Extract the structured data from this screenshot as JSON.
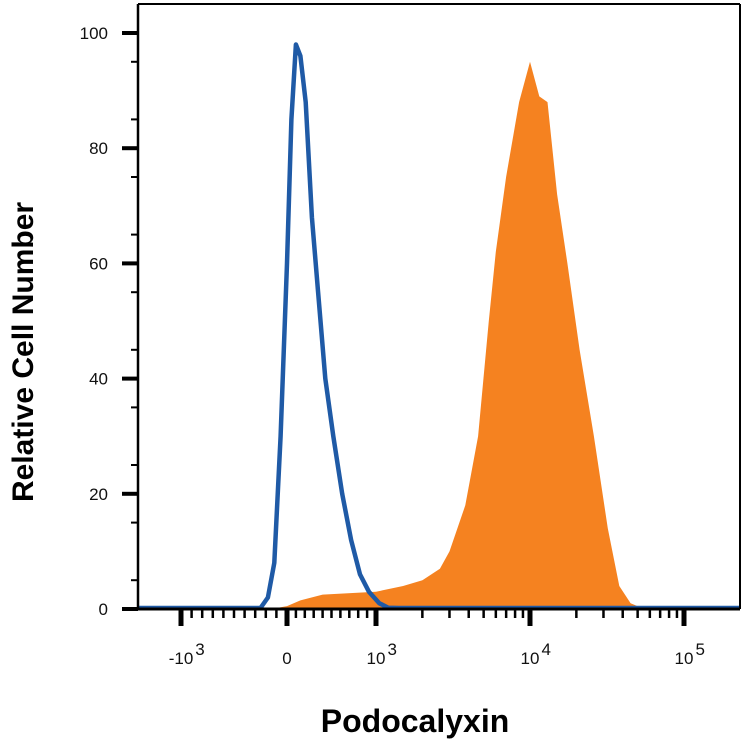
{
  "chart_data": {
    "type": "area",
    "title": "",
    "xlabel": "Podocalyxin",
    "ylabel": "Relative Cell Number",
    "x_scale": "biexponential",
    "ylim": [
      0,
      100
    ],
    "grid": false,
    "legend": "none",
    "y_ticks": [
      {
        "value": 0,
        "label": "0"
      },
      {
        "value": 20,
        "label": "20"
      },
      {
        "value": 40,
        "label": "40"
      },
      {
        "value": 60,
        "label": "60"
      },
      {
        "value": 80,
        "label": "80"
      },
      {
        "value": 100,
        "label": "100"
      }
    ],
    "x_ticks": [
      {
        "value": -1000,
        "base": "-10",
        "exp": "3"
      },
      {
        "value": 0,
        "base": "0",
        "exp": ""
      },
      {
        "value": 1000,
        "base": "10",
        "exp": "3"
      },
      {
        "value": 10000,
        "base": "10",
        "exp": "4"
      },
      {
        "value": 100000,
        "base": "10",
        "exp": "5"
      }
    ],
    "series": [
      {
        "style": "filled",
        "color": "#f58220",
        "points": [
          [
            -150,
            0
          ],
          [
            0,
            0.5
          ],
          [
            150,
            1.5
          ],
          [
            400,
            2.5
          ],
          [
            1000,
            3
          ],
          [
            1500,
            4
          ],
          [
            2000,
            5
          ],
          [
            2600,
            7
          ],
          [
            3000,
            10
          ],
          [
            3800,
            18
          ],
          [
            4600,
            30
          ],
          [
            5400,
            50
          ],
          [
            6000,
            62
          ],
          [
            7000,
            75
          ],
          [
            8500,
            88
          ],
          [
            10000,
            95
          ],
          [
            11500,
            89
          ],
          [
            13000,
            88
          ],
          [
            15000,
            72
          ],
          [
            17500,
            60
          ],
          [
            21000,
            45
          ],
          [
            26000,
            30
          ],
          [
            32000,
            14
          ],
          [
            38000,
            4
          ],
          [
            45000,
            1
          ],
          [
            55000,
            0
          ]
        ]
      },
      {
        "style": "line",
        "color": "#1f5aa6",
        "points": [
          [
            -350,
            0
          ],
          [
            -250,
            0
          ],
          [
            -180,
            2
          ],
          [
            -120,
            8
          ],
          [
            -60,
            30
          ],
          [
            0,
            60
          ],
          [
            50,
            85
          ],
          [
            100,
            98
          ],
          [
            150,
            96
          ],
          [
            210,
            88
          ],
          [
            280,
            68
          ],
          [
            350,
            55
          ],
          [
            430,
            40
          ],
          [
            520,
            30
          ],
          [
            620,
            20
          ],
          [
            720,
            12
          ],
          [
            820,
            6
          ],
          [
            920,
            3
          ],
          [
            1050,
            1
          ],
          [
            1200,
            0.2
          ],
          [
            1400,
            0
          ]
        ]
      }
    ]
  }
}
